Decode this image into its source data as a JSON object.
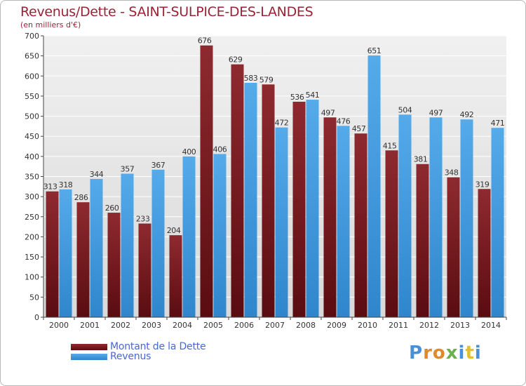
{
  "title": "Revenus/Dette - SAINT-SULPICE-DES-LANDES",
  "subtitle": "(en milliers d'€)",
  "legend": {
    "debt_label": "Montant de la Dette",
    "revenue_label": "Revenus"
  },
  "logo": {
    "text": "Proxiti"
  },
  "colors": {
    "debt": "#7a1a1f",
    "revenue": "#3e9de0",
    "title": "#9b2335",
    "legend_text": "#4a66d8"
  },
  "chart_data": {
    "type": "bar",
    "title": "Revenus/Dette - SAINT-SULPICE-DES-LANDES",
    "subtitle": "(en milliers d'€)",
    "xlabel": "",
    "ylabel": "",
    "ylim": [
      0,
      700
    ],
    "yticks": [
      0,
      50,
      100,
      150,
      200,
      250,
      300,
      350,
      400,
      450,
      500,
      550,
      600,
      650,
      700
    ],
    "grid": true,
    "legend_position": "bottom-left",
    "categories": [
      "2000",
      "2001",
      "2002",
      "2003",
      "2004",
      "2005",
      "2006",
      "2007",
      "2008",
      "2009",
      "2010",
      "2011",
      "2012",
      "2013",
      "2014"
    ],
    "series": [
      {
        "name": "Montant de la Dette",
        "values": [
          313,
          286,
          260,
          233,
          204,
          676,
          629,
          579,
          536,
          497,
          457,
          415,
          381,
          348,
          319
        ]
      },
      {
        "name": "Revenus",
        "values": [
          318,
          344,
          357,
          367,
          400,
          406,
          583,
          472,
          541,
          476,
          651,
          504,
          497,
          492,
          471
        ]
      }
    ]
  }
}
